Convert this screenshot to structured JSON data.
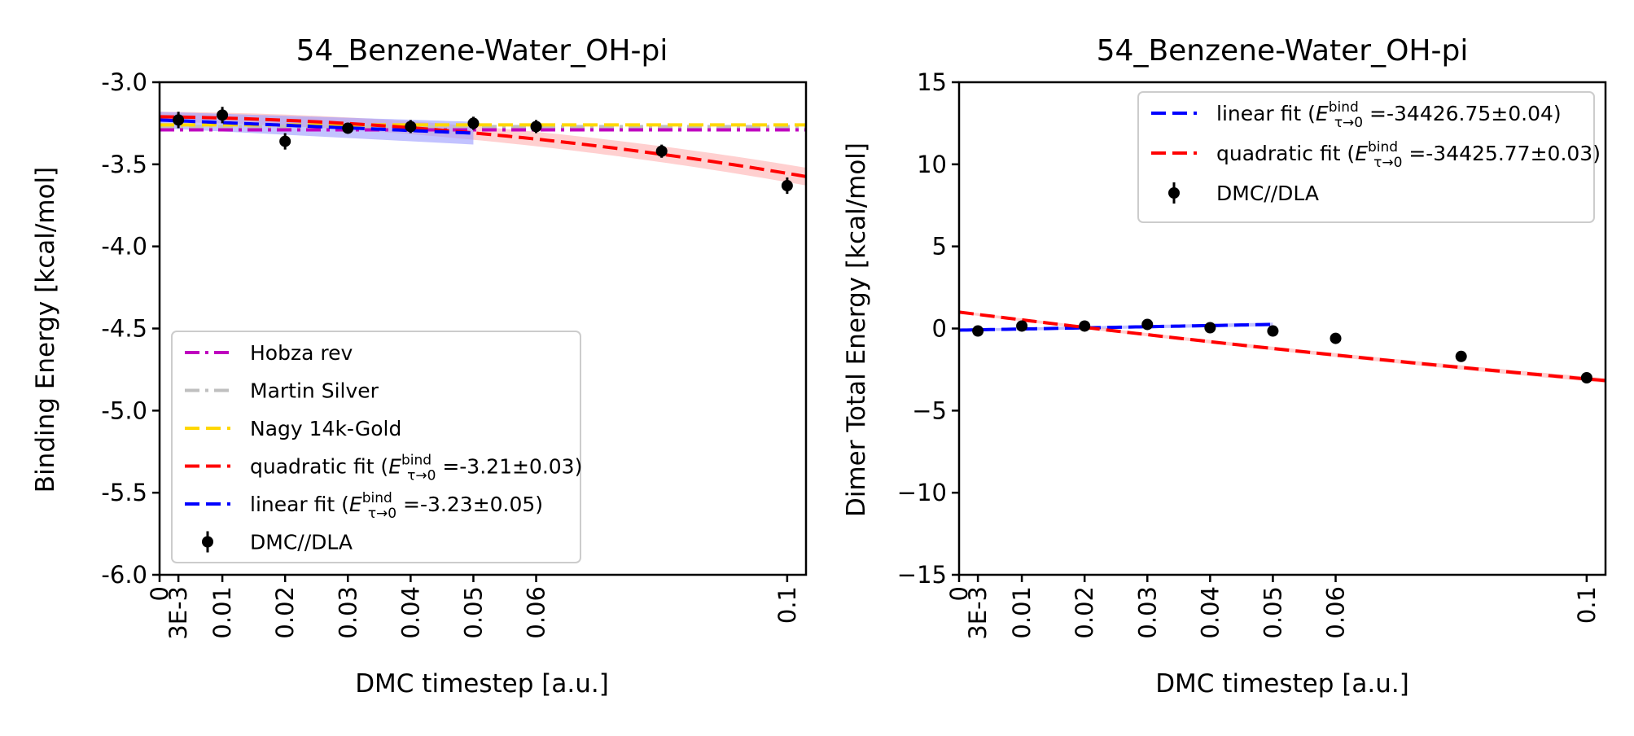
{
  "chart_data": [
    {
      "type": "line",
      "title": "54_Benzene-Water_OH-pi",
      "xlabel": "DMC timestep [a.u.]",
      "ylabel": "Binding Energy [kcal/mol]",
      "xlim": [
        0,
        0.103
      ],
      "ylim": [
        -6.0,
        -3.0
      ],
      "x_ticks": [
        0,
        0.003,
        0.01,
        0.02,
        0.03,
        0.04,
        0.05,
        0.06,
        0.1
      ],
      "x_tick_labels": [
        "0",
        "3E-3",
        "0.01",
        "0.02",
        "0.03",
        "0.04",
        "0.05",
        "0.06",
        "0.1"
      ],
      "y_ticks": [
        -6.0,
        -5.5,
        -5.0,
        -4.5,
        -4.0,
        -3.5,
        -3.0
      ],
      "y_tick_labels": [
        "-6.0",
        "-5.5",
        "-5.0",
        "-4.5",
        "-4.0",
        "-3.5",
        "-3.0"
      ],
      "grid": false,
      "legend_position": "bottom-left",
      "reference_lines": [
        {
          "name": "Hobza rev",
          "y": -3.29,
          "color": "#bf00bf",
          "style": "dashdot"
        },
        {
          "name": "Martin Silver",
          "y": -3.27,
          "color": "#bfbfbf",
          "style": "dashdot"
        },
        {
          "name": "Nagy 14k-Gold",
          "y": -3.26,
          "color": "#ffd700",
          "style": "dashed"
        }
      ],
      "fits": [
        {
          "name_prefix": "quadratic fit (",
          "name_sup": "bind",
          "name_sub": "τ→0",
          "name_suffix": " =-3.21±0.03)",
          "kind": "quadratic",
          "coeffs": [
            -3.21,
            -0.5,
            -29.5
          ],
          "x_range": [
            0,
            0.103
          ],
          "band": 0.03,
          "color": "#ff0000",
          "band_color": "#ffb0b0"
        },
        {
          "name_prefix": "linear fit (",
          "name_sup": "bind",
          "name_sub": "τ→0",
          "name_suffix": " =-3.23±0.05)",
          "kind": "linear",
          "coeffs": [
            -3.23,
            -1.6
          ],
          "x_range": [
            0,
            0.05
          ],
          "band": 0.05,
          "color": "#0000ff",
          "band_color": "#9a9aff"
        }
      ],
      "points": {
        "name": "DMC//DLA",
        "x": [
          0.003,
          0.01,
          0.02,
          0.03,
          0.04,
          0.05,
          0.06,
          0.08,
          0.1
        ],
        "y": [
          -3.23,
          -3.2,
          -3.36,
          -3.28,
          -3.27,
          -3.25,
          -3.27,
          -3.42,
          -3.63
        ],
        "err": [
          0.05,
          0.05,
          0.05,
          0.03,
          0.04,
          0.04,
          0.04,
          0.04,
          0.05
        ]
      },
      "legend_order": [
        "Hobza rev",
        "Martin Silver",
        "Nagy 14k-Gold",
        "quadratic",
        "linear",
        "DMC//DLA"
      ]
    },
    {
      "type": "line",
      "title": "54_Benzene-Water_OH-pi",
      "xlabel": "DMC timestep [a.u.]",
      "ylabel": "Dimer Total Energy [kcal/mol]",
      "xlim": [
        0,
        0.103
      ],
      "ylim": [
        -15,
        15
      ],
      "x_ticks": [
        0,
        0.003,
        0.01,
        0.02,
        0.03,
        0.04,
        0.05,
        0.06,
        0.1
      ],
      "x_tick_labels": [
        "0",
        "3E-3",
        "0.01",
        "0.02",
        "0.03",
        "0.04",
        "0.05",
        "0.06",
        "0.1"
      ],
      "y_ticks": [
        -15,
        -10,
        -5,
        0,
        5,
        10,
        15
      ],
      "y_tick_labels": [
        "−15",
        "−10",
        "−5",
        "0",
        "5",
        "10",
        "15"
      ],
      "grid": false,
      "legend_position": "top-right",
      "reference_lines": [],
      "fits": [
        {
          "name_prefix": "linear fit (",
          "name_sup": "bind",
          "name_sub": "τ→0",
          "name_suffix": " =-34426.75±0.04)",
          "kind": "linear",
          "coeffs": [
            -0.1,
            7.0
          ],
          "x_range": [
            0,
            0.05
          ],
          "band": 0.08,
          "color": "#0000ff",
          "band_color": "#9a9aff"
        },
        {
          "name_prefix": "quadratic fit (",
          "name_sup": "bind",
          "name_sub": "τ→0",
          "name_suffix": " =-34425.77±0.03)",
          "kind": "quadratic",
          "coeffs": [
            1.0,
            -48.0,
            73.0
          ],
          "x_range": [
            0,
            0.103
          ],
          "band": 0.08,
          "color": "#ff0000",
          "band_color": "#ffb0b0"
        }
      ],
      "points": {
        "name": "DMC//DLA",
        "x": [
          0.003,
          0.01,
          0.02,
          0.03,
          0.04,
          0.05,
          0.06,
          0.08,
          0.1
        ],
        "y": [
          -0.15,
          0.15,
          0.15,
          0.25,
          0.05,
          -0.15,
          -0.6,
          -1.7,
          -3.0
        ],
        "err": [
          0.05,
          0.05,
          0.05,
          0.05,
          0.05,
          0.05,
          0.05,
          0.05,
          0.05
        ]
      },
      "legend_order": [
        "linear",
        "quadratic",
        "DMC//DLA"
      ]
    }
  ]
}
